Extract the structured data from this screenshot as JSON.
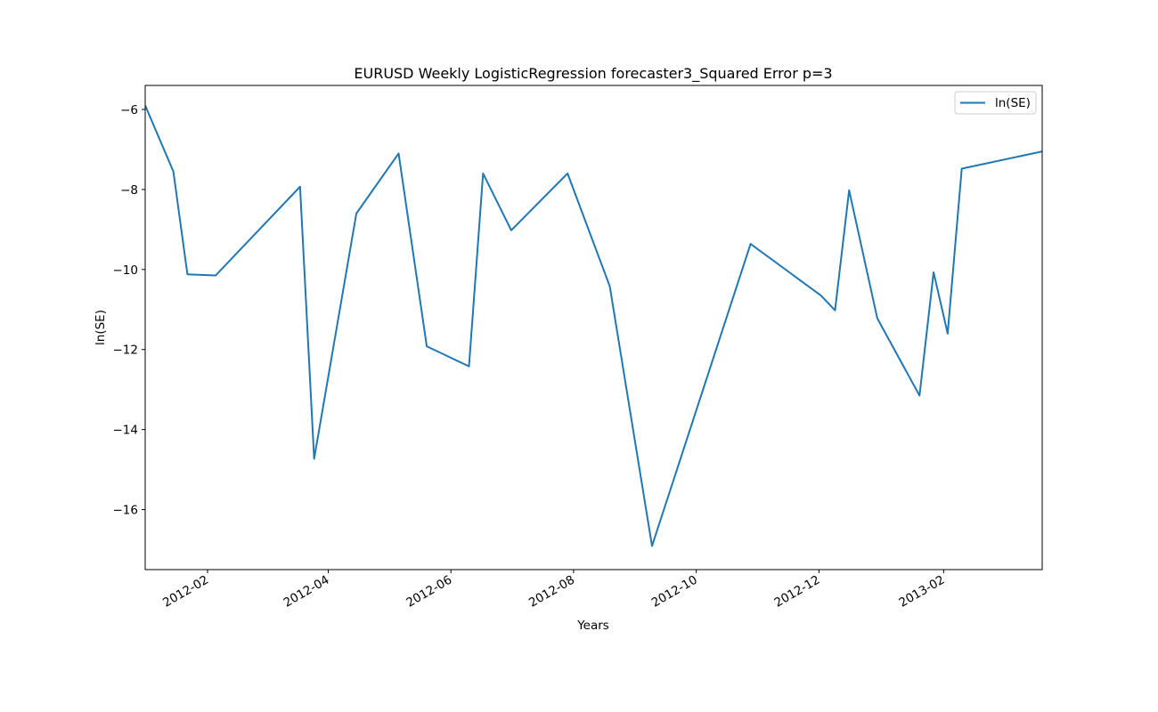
{
  "chart_data": {
    "type": "line",
    "title": "EURUSD Weekly LogisticRegression forecaster3_Squared Error p=3",
    "xlabel": "Years",
    "ylabel": "ln(SE)",
    "x_axis_type": "date",
    "xlim": [
      "2012-01-01",
      "2013-03-22"
    ],
    "ylim": [
      -17.5,
      -5.4
    ],
    "x_ticks": [
      "2012-02",
      "2012-04",
      "2012-06",
      "2012-08",
      "2012-10",
      "2012-12",
      "2013-02"
    ],
    "y_ticks": [
      -6,
      -8,
      -10,
      -12,
      -14,
      -16
    ],
    "y_tick_labels": [
      "−6",
      "−8",
      "−10",
      "−12",
      "−14",
      "−16"
    ],
    "grid": false,
    "legend": {
      "position": "top-right",
      "entries": [
        "ln(SE)"
      ]
    },
    "series": [
      {
        "name": "ln(SE)",
        "color": "#1f77b4",
        "x": [
          "2012-01-01",
          "2012-01-15",
          "2012-01-22",
          "2012-02-05",
          "2012-03-18",
          "2012-03-25",
          "2012-04-15",
          "2012-05-06",
          "2012-05-20",
          "2012-06-10",
          "2012-06-17",
          "2012-07-01",
          "2012-07-29",
          "2012-08-19",
          "2012-09-09",
          "2012-10-28",
          "2012-12-02",
          "2012-12-09",
          "2012-12-16",
          "2012-12-30",
          "2013-01-20",
          "2013-01-27",
          "2013-02-03",
          "2013-02-10",
          "2013-03-22"
        ],
        "y": [
          -5.9,
          -7.55,
          -10.12,
          -10.15,
          -7.93,
          -14.73,
          -8.6,
          -7.1,
          -11.92,
          -12.42,
          -7.6,
          -9.02,
          -7.6,
          -10.42,
          -16.91,
          -9.36,
          -10.65,
          -11.02,
          -8.02,
          -11.22,
          -13.15,
          -10.07,
          -11.6,
          -7.48,
          -7.05
        ]
      }
    ]
  }
}
